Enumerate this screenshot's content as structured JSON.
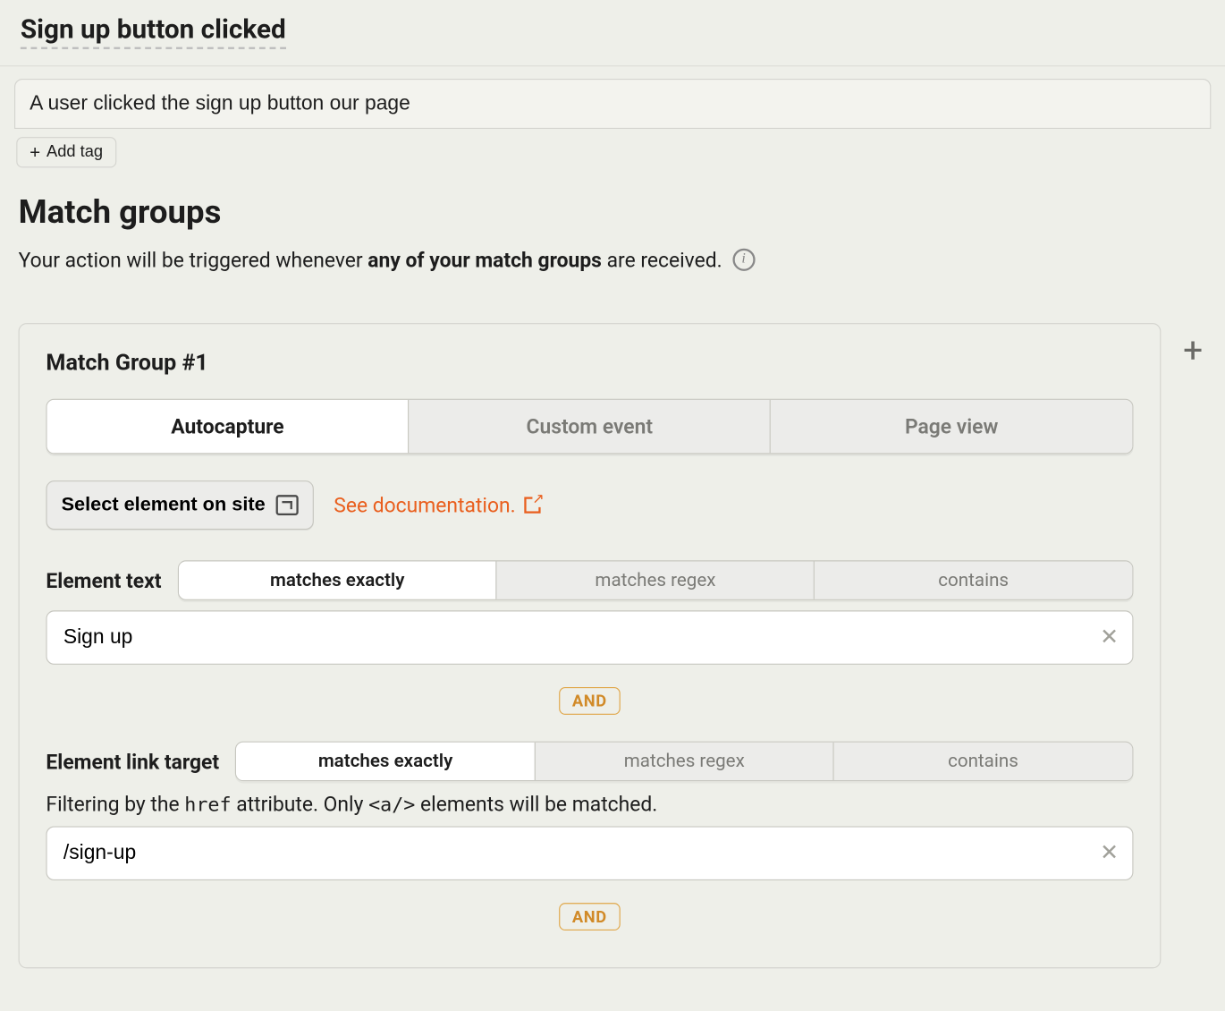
{
  "header": {
    "title": "Sign up button clicked",
    "description": "A user clicked the sign up button our page",
    "add_tag_label": "Add tag"
  },
  "match_section": {
    "heading": "Match groups",
    "trigger_prefix": "Your action will be triggered whenever ",
    "trigger_bold": "any of your match groups",
    "trigger_suffix": " are received."
  },
  "group": {
    "title": "Match Group #1",
    "tabs": {
      "autocapture": "Autocapture",
      "custom_event": "Custom event",
      "page_view": "Page view"
    },
    "select_element_label": "Select element on site",
    "doc_link_label": "See documentation.",
    "element_text": {
      "label": "Element text",
      "seg": {
        "exact": "matches exactly",
        "regex": "matches regex",
        "contains": "contains"
      },
      "value": "Sign up"
    },
    "and_label": "AND",
    "element_link": {
      "label": "Element link target",
      "seg": {
        "exact": "matches exactly",
        "regex": "matches regex",
        "contains": "contains"
      },
      "help_prefix": "Filtering by the ",
      "help_code1": "href",
      "help_mid": " attribute. Only ",
      "help_code2": "<a/>",
      "help_suffix": " elements will be matched.",
      "value": "/sign-up"
    }
  },
  "colors": {
    "bg": "#eeefe9",
    "accent": "#e95f1e",
    "and_border": "#e0a648"
  }
}
